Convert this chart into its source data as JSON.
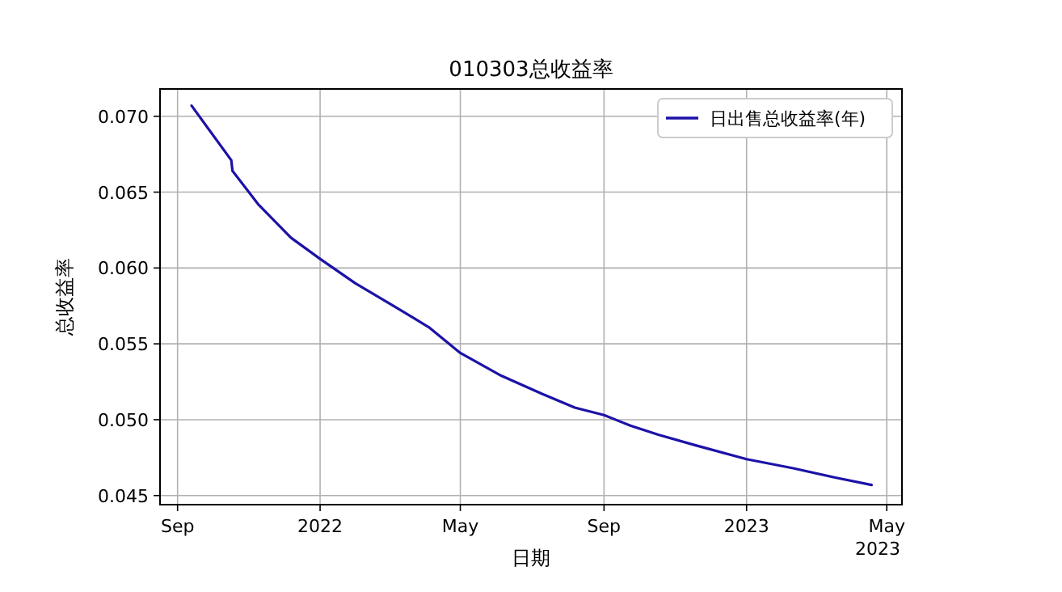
{
  "chart_data": {
    "type": "line",
    "title": "010303总收益率",
    "xlabel": "日期",
    "ylabel": "总收益率",
    "x": [
      "2021-09-13",
      "2021-10-17",
      "2021-10-18",
      "2021-11-09",
      "2021-12-07",
      "2022-01-01",
      "2022-01-31",
      "2022-03-07",
      "2022-04-04",
      "2022-05-01",
      "2022-06-05",
      "2022-07-10",
      "2022-08-07",
      "2022-09-01",
      "2022-09-24",
      "2022-10-18",
      "2022-11-19",
      "2023-01-01",
      "2023-02-10",
      "2023-03-17",
      "2023-04-18"
    ],
    "series": [
      {
        "name": "日出售总收益率(年)",
        "color": "#1c12a8",
        "values": [
          0.0707,
          0.0671,
          0.0664,
          0.0642,
          0.062,
          0.0606,
          0.059,
          0.0574,
          0.0561,
          0.0544,
          0.0529,
          0.0517,
          0.0508,
          0.0503,
          0.0496,
          0.049,
          0.0483,
          0.0474,
          0.0468,
          0.0462,
          0.0457
        ]
      }
    ],
    "xlim": [
      "2021-08-17",
      "2023-05-14"
    ],
    "xticks": [
      {
        "value": "2021-09-01",
        "label": "Sep"
      },
      {
        "value": "2022-01-01",
        "label": "2022"
      },
      {
        "value": "2022-05-01",
        "label": "May"
      },
      {
        "value": "2022-09-01",
        "label": "Sep"
      },
      {
        "value": "2023-01-01",
        "label": "2023"
      },
      {
        "value": "2023-05-01",
        "label": "May"
      }
    ],
    "ylim": [
      0.0444,
      0.0718
    ],
    "yticks": [
      {
        "value": 0.045,
        "label": "0.045"
      },
      {
        "value": 0.05,
        "label": "0.050"
      },
      {
        "value": 0.055,
        "label": "0.055"
      },
      {
        "value": 0.06,
        "label": "0.060"
      },
      {
        "value": 0.065,
        "label": "0.065"
      },
      {
        "value": 0.07,
        "label": "0.070"
      }
    ],
    "annotations": [
      "2023"
    ],
    "grid": true,
    "legend": "top right",
    "marker": "none",
    "line_style": "solid"
  }
}
